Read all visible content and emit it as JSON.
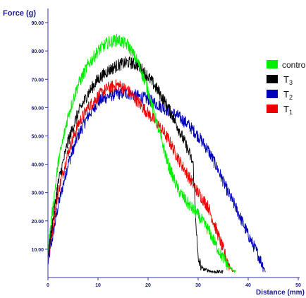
{
  "chart_data": {
    "type": "line",
    "xlabel": "Distance (mm)",
    "ylabel": "Force (g)",
    "xlim": [
      0,
      50
    ],
    "ylim": [
      0,
      95
    ],
    "x_ticks": [
      0,
      10,
      20,
      30,
      40,
      50
    ],
    "x_tick_labels": [
      "0",
      "10",
      "20",
      "30",
      "40",
      "50"
    ],
    "y_ticks": [
      10,
      20,
      30,
      40,
      50,
      60,
      70,
      80,
      90
    ],
    "y_tick_labels": [
      "10.00",
      "20.00",
      "30.00",
      "40.00",
      "50.00",
      "60.00",
      "70.00",
      "80.00",
      "90.00"
    ],
    "grid": false,
    "legend_position": "right",
    "series": [
      {
        "name": "control",
        "color": "#00ee00",
        "x": [
          0,
          2,
          4,
          6,
          8,
          10,
          12,
          14,
          16,
          18,
          20,
          22,
          24,
          26,
          28,
          30,
          32,
          34,
          36,
          37.5
        ],
        "y": [
          10,
          40,
          57,
          68,
          75,
          80,
          83,
          84,
          82,
          76,
          66,
          53,
          40,
          31,
          26,
          22,
          17,
          10,
          4,
          2
        ]
      },
      {
        "name": "T3",
        "label_main": "T",
        "label_sub": "3",
        "color": "#000000",
        "x": [
          0,
          2,
          4,
          6,
          8,
          10,
          12,
          14,
          16,
          18,
          20,
          22,
          24,
          26,
          28,
          29,
          29.5,
          30,
          31,
          33,
          35
        ],
        "y": [
          8,
          33,
          48,
          58,
          65,
          70,
          73,
          75,
          76,
          75,
          71,
          66,
          60,
          53,
          45,
          40,
          22,
          6,
          3,
          2,
          2
        ]
      },
      {
        "name": "T2",
        "label_main": "T",
        "label_sub": "2",
        "color": "#0000bb",
        "x": [
          0,
          2,
          4,
          6,
          8,
          10,
          12,
          14,
          16,
          18,
          20,
          22,
          24,
          26,
          28,
          30,
          32,
          34,
          36,
          38,
          40,
          42,
          43.5
        ],
        "y": [
          5,
          25,
          40,
          50,
          57,
          62,
          64,
          65,
          65,
          64,
          63,
          61,
          59,
          57,
          54,
          50,
          45,
          38,
          30,
          23,
          15,
          8,
          2
        ]
      },
      {
        "name": "T1",
        "label_main": "T",
        "label_sub": "1",
        "color": "#ee0000",
        "x": [
          0,
          2,
          4,
          6,
          8,
          10,
          12,
          14,
          16,
          18,
          20,
          22,
          24,
          26,
          28,
          30,
          32,
          34,
          36,
          37
        ],
        "y": [
          6,
          30,
          44,
          54,
          60,
          64,
          67,
          68,
          66,
          62,
          58,
          54,
          49,
          42,
          36,
          30,
          25,
          15,
          5,
          2
        ]
      }
    ]
  }
}
